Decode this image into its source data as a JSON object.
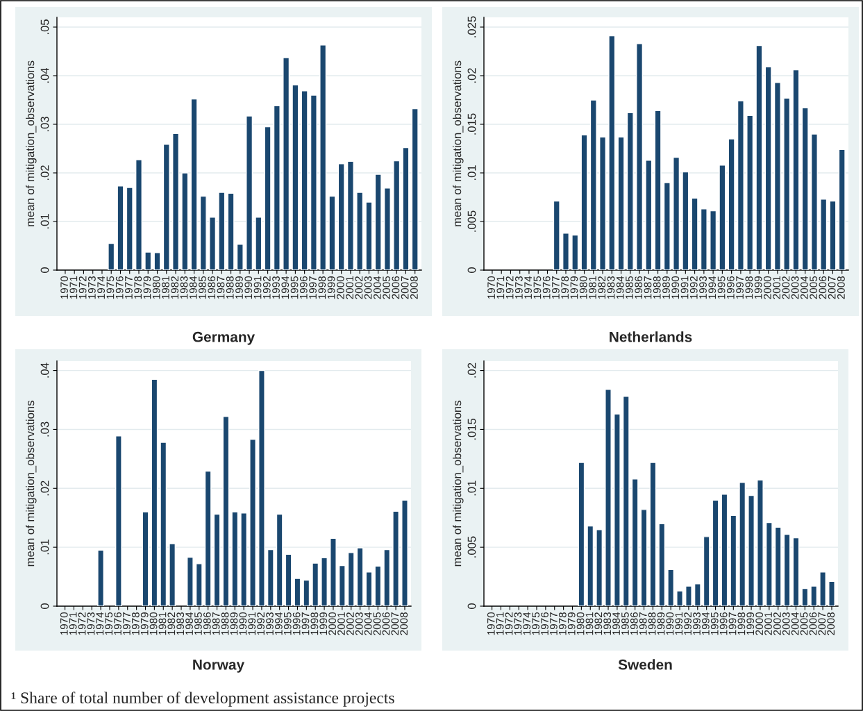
{
  "chart_data": [
    {
      "type": "bar",
      "title": "Germany",
      "ylabel": "mean of mitigation_observations",
      "color": "#1a476f",
      "grid": "y",
      "categories": [
        "1970",
        "1971",
        "1972",
        "1973",
        "1974",
        "1975",
        "1976",
        "1977",
        "1978",
        "1979",
        "1980",
        "1981",
        "1982",
        "1983",
        "1984",
        "1985",
        "1986",
        "1987",
        "1988",
        "1989",
        "1990",
        "1991",
        "1992",
        "1993",
        "1994",
        "1995",
        "1996",
        "1997",
        "1998",
        "1999",
        "2000",
        "2001",
        "2002",
        "2003",
        "2004",
        "2005",
        "2006",
        "2007",
        "2008"
      ],
      "values": [
        null,
        null,
        null,
        null,
        null,
        0.0055,
        0.0173,
        0.017,
        0.0227,
        0.0037,
        0.0036,
        0.0259,
        0.0281,
        0.02,
        0.0352,
        0.0152,
        0.0109,
        0.016,
        0.0158,
        0.0053,
        0.0317,
        0.0109,
        0.0295,
        0.0338,
        0.0437,
        0.0381,
        0.0369,
        0.036,
        0.0463,
        0.0152,
        0.0219,
        0.0224,
        0.016,
        0.014,
        0.0197,
        0.0169,
        0.0225,
        0.0252,
        0.0332
      ],
      "ylim": [
        0,
        0.052
      ],
      "yticks": [
        0,
        {
          "value": 0.01,
          "label": ".01"
        },
        {
          "value": 0.02,
          "label": ".02"
        },
        {
          "value": 0.03,
          "label": ".03"
        },
        {
          "value": 0.04,
          "label": ".04"
        },
        {
          "value": 0.05,
          "label": ".05"
        }
      ]
    },
    {
      "type": "bar",
      "title": "Netherlands",
      "ylabel": "mean of mitigation_observations",
      "color": "#1a476f",
      "grid": "y",
      "categories": [
        "1970",
        "1971",
        "1972",
        "1973",
        "1974",
        "1975",
        "1976",
        "1977",
        "1978",
        "1979",
        "1980",
        "1981",
        "1982",
        "1983",
        "1984",
        "1985",
        "1986",
        "1987",
        "1988",
        "1989",
        "1990",
        "1991",
        "1992",
        "1993",
        "1994",
        "1995",
        "1996",
        "1997",
        "1998",
        "1999",
        "2000",
        "2001",
        "2002",
        "2003",
        "2004",
        "2005",
        "2006",
        "2007",
        "2008"
      ],
      "values": [
        null,
        null,
        null,
        null,
        null,
        null,
        null,
        0.0071,
        0.0038,
        0.0036,
        0.0139,
        0.0175,
        0.0137,
        0.0241,
        0.0137,
        0.0162,
        0.0233,
        0.0113,
        0.0164,
        0.009,
        0.0116,
        0.0101,
        0.0074,
        0.0063,
        0.0061,
        0.0108,
        0.0135,
        0.0174,
        0.0159,
        0.0231,
        0.0209,
        0.0193,
        0.0177,
        0.0206,
        0.0167,
        0.014,
        0.0073,
        0.0071,
        0.0124
      ],
      "ylim": [
        0,
        0.026
      ],
      "yticks": [
        0,
        {
          "value": 0.005,
          "label": ".005"
        },
        {
          "value": 0.01,
          "label": ".01"
        },
        {
          "value": 0.015,
          "label": ".015"
        },
        {
          "value": 0.02,
          "label": ".02"
        },
        {
          "value": 0.025,
          "label": ".025"
        }
      ]
    },
    {
      "type": "bar",
      "title": "Norway",
      "ylabel": "mean of mitigation_observations",
      "color": "#1a476f",
      "grid": "y",
      "categories": [
        "1970",
        "1971",
        "1972",
        "1973",
        "1974",
        "1975",
        "1976",
        "1977",
        "1978",
        "1979",
        "1980",
        "1981",
        "1982",
        "1983",
        "1984",
        "1985",
        "1986",
        "1987",
        "1988",
        "1989",
        "1990",
        "1991",
        "1992",
        "1993",
        "1994",
        "1995",
        "1996",
        "1997",
        "1998",
        "1999",
        "2000",
        "2001",
        "2002",
        "2003",
        "2004",
        "2005",
        "2006",
        "2007",
        "2008"
      ],
      "values": [
        null,
        null,
        null,
        null,
        0.0095,
        null,
        0.0289,
        null,
        null,
        0.016,
        0.0385,
        0.0278,
        0.0106,
        null,
        0.0083,
        0.0072,
        0.0229,
        0.0156,
        0.0322,
        0.016,
        0.0158,
        0.0283,
        0.04,
        0.0096,
        0.0156,
        0.0088,
        0.0047,
        0.0044,
        0.0073,
        0.0082,
        0.0115,
        0.0069,
        0.0091,
        0.0099,
        0.0058,
        0.0068,
        0.0096,
        0.0161,
        0.018
      ],
      "ylim": [
        0,
        0.0416
      ],
      "yticks": [
        0,
        {
          "value": 0.01,
          "label": ".01"
        },
        {
          "value": 0.02,
          "label": ".02"
        },
        {
          "value": 0.03,
          "label": ".03"
        },
        {
          "value": 0.04,
          "label": ".04"
        }
      ]
    },
    {
      "type": "bar",
      "title": "Sweden",
      "ylabel": "mean of mitigation_observations",
      "color": "#1a476f",
      "grid": "y",
      "categories": [
        "1970",
        "1971",
        "1972",
        "1973",
        "1974",
        "1975",
        "1976",
        "1977",
        "1978",
        "1979",
        "1980",
        "1981",
        "1982",
        "1983",
        "1984",
        "1985",
        "1986",
        "1987",
        "1988",
        "1989",
        "1990",
        "1991",
        "1992",
        "1993",
        "1994",
        "1995",
        "1996",
        "1997",
        "1998",
        "1999",
        "2000",
        "2001",
        "2002",
        "2003",
        "2004",
        "2005",
        "2006",
        "2007",
        "2008"
      ],
      "values": [
        null,
        null,
        null,
        null,
        null,
        null,
        null,
        null,
        null,
        null,
        0.0122,
        0.0068,
        0.0065,
        0.0184,
        0.0163,
        0.0178,
        0.0108,
        0.0082,
        0.0122,
        0.007,
        0.0031,
        0.0013,
        0.0017,
        0.0019,
        0.0059,
        0.009,
        0.0095,
        0.0077,
        0.0105,
        0.0094,
        0.0107,
        0.0071,
        0.0067,
        0.0061,
        0.0058,
        0.0015,
        0.0017,
        0.0029,
        0.0021
      ],
      "ylim": [
        0,
        0.0208
      ],
      "yticks": [
        0,
        {
          "value": 0.005,
          "label": ".005"
        },
        {
          "value": 0.01,
          "label": ".01"
        },
        {
          "value": 0.015,
          "label": ".015"
        },
        {
          "value": 0.02,
          "label": ".02"
        }
      ],
      "annotations": [
        "¹ Share of total number of development assistance projects"
      ]
    }
  ]
}
